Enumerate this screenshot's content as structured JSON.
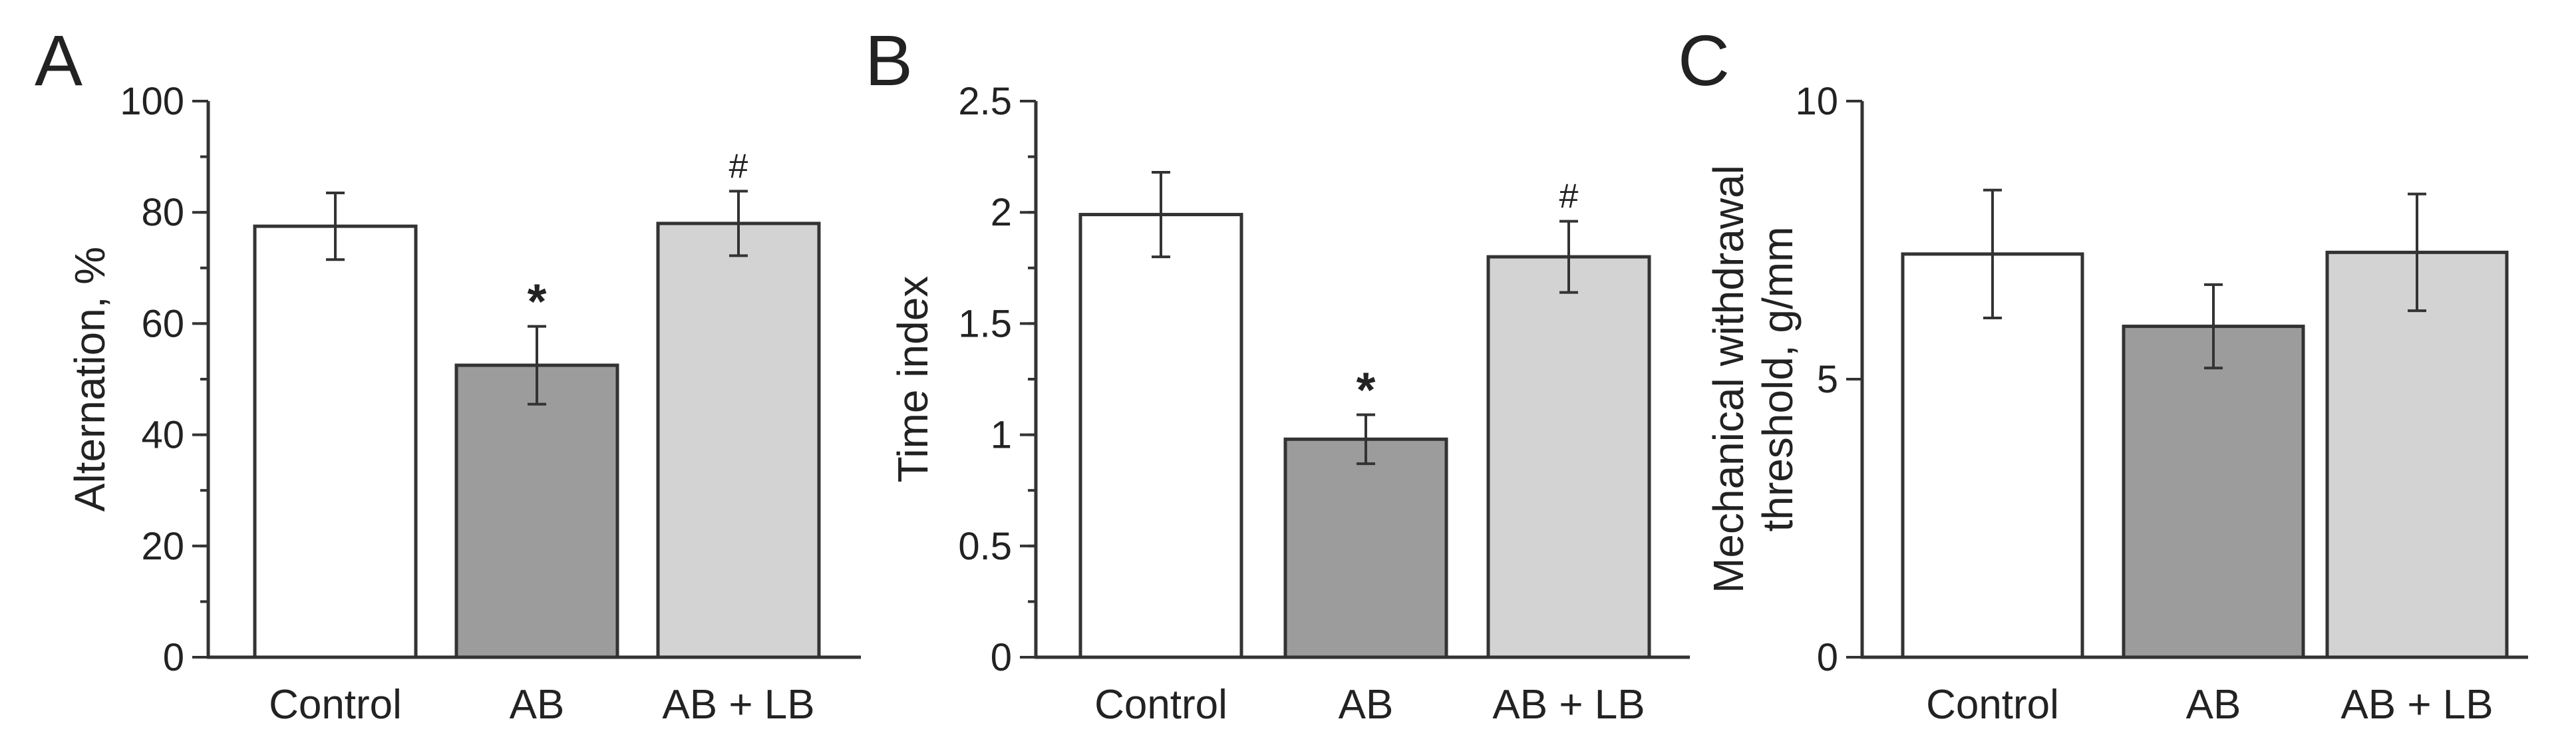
{
  "chart_data": [
    {
      "panel": "A",
      "type": "bar",
      "categories": [
        "Control",
        "AB",
        "AB + LB"
      ],
      "values": [
        77.5,
        52.5,
        78
      ],
      "errors": [
        6,
        7,
        5.8
      ],
      "significance": [
        "",
        "*",
        "#"
      ],
      "ylabel": "Alternation, %",
      "ylim": [
        0,
        100
      ],
      "yticks": [
        "0",
        "20",
        "40",
        "60",
        "80",
        "100"
      ],
      "ytick_values": [
        0,
        20,
        40,
        60,
        80,
        100
      ],
      "minor_step": 10
    },
    {
      "panel": "B",
      "type": "bar",
      "categories": [
        "Control",
        "AB",
        "AB + LB"
      ],
      "values": [
        1.99,
        0.98,
        1.8
      ],
      "errors": [
        0.19,
        0.11,
        0.16
      ],
      "significance": [
        "",
        "*",
        "#"
      ],
      "ylabel": "Time index",
      "ylim": [
        0,
        2.5
      ],
      "yticks": [
        "0",
        "0.5",
        "1",
        "1.5",
        "2",
        "2.5"
      ],
      "ytick_values": [
        0,
        0.5,
        1,
        1.5,
        2,
        2.5
      ],
      "minor_step": 0.25
    },
    {
      "panel": "C",
      "type": "bar",
      "categories": [
        "Control",
        "AB",
        "AB + LB"
      ],
      "values": [
        7.25,
        5.95,
        7.28
      ],
      "errors": [
        1.15,
        0.75,
        1.05
      ],
      "significance": [
        "",
        "",
        ""
      ],
      "ylabel": [
        "Mechanical withdrawal",
        "threshold, g/mm"
      ],
      "ylim": [
        0,
        10
      ],
      "yticks": [
        "0",
        "5",
        "10"
      ],
      "ytick_values": [
        0,
        5,
        10
      ],
      "minor_step": null
    }
  ],
  "colors": {
    "bars": [
      "#ffffff",
      "#9c9c9c",
      "#d2d3d2"
    ],
    "stroke": "#333333",
    "text": "#222222"
  }
}
